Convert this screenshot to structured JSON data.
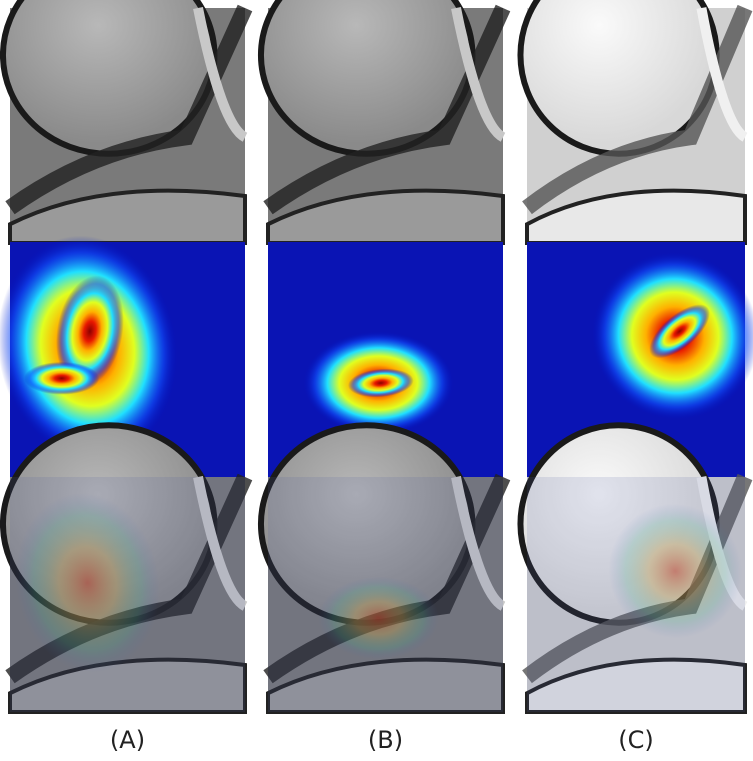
{
  "panels": [
    {
      "label": "(A)"
    },
    {
      "label": "(B)"
    },
    {
      "label": "(C)"
    }
  ]
}
